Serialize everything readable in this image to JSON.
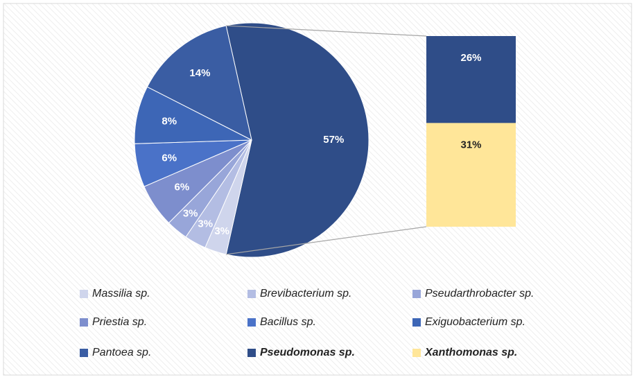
{
  "chart_data": {
    "type": "pie-of-bar",
    "pie": {
      "categories": [
        "Massilia sp.",
        "Brevibacterium sp.",
        "Pseudarthrobacter sp.",
        "Priestia sp.",
        "Bacillus sp.",
        "Exiguobacterium sp.",
        "Pantoea sp.",
        null
      ],
      "values": [
        3,
        3,
        3,
        6,
        6,
        8,
        14,
        57
      ],
      "value_labels": [
        "3%",
        "3%",
        "3%",
        "6%",
        "6%",
        "8%",
        "14%",
        "57%"
      ],
      "colors": [
        "#cfd5ec",
        "#b3bde3",
        "#98a6d9",
        "#7d8ecd",
        "#4a72c8",
        "#3d66b6",
        "#3a5da3",
        "#2f4d88"
      ]
    },
    "bar": {
      "categories": [
        "Pseudomonas sp.",
        "Xanthomonas sp."
      ],
      "values": [
        26,
        31
      ],
      "value_labels": [
        "26%",
        "31%"
      ],
      "colors": [
        "#2f4d88",
        "#ffe699"
      ]
    }
  }
}
